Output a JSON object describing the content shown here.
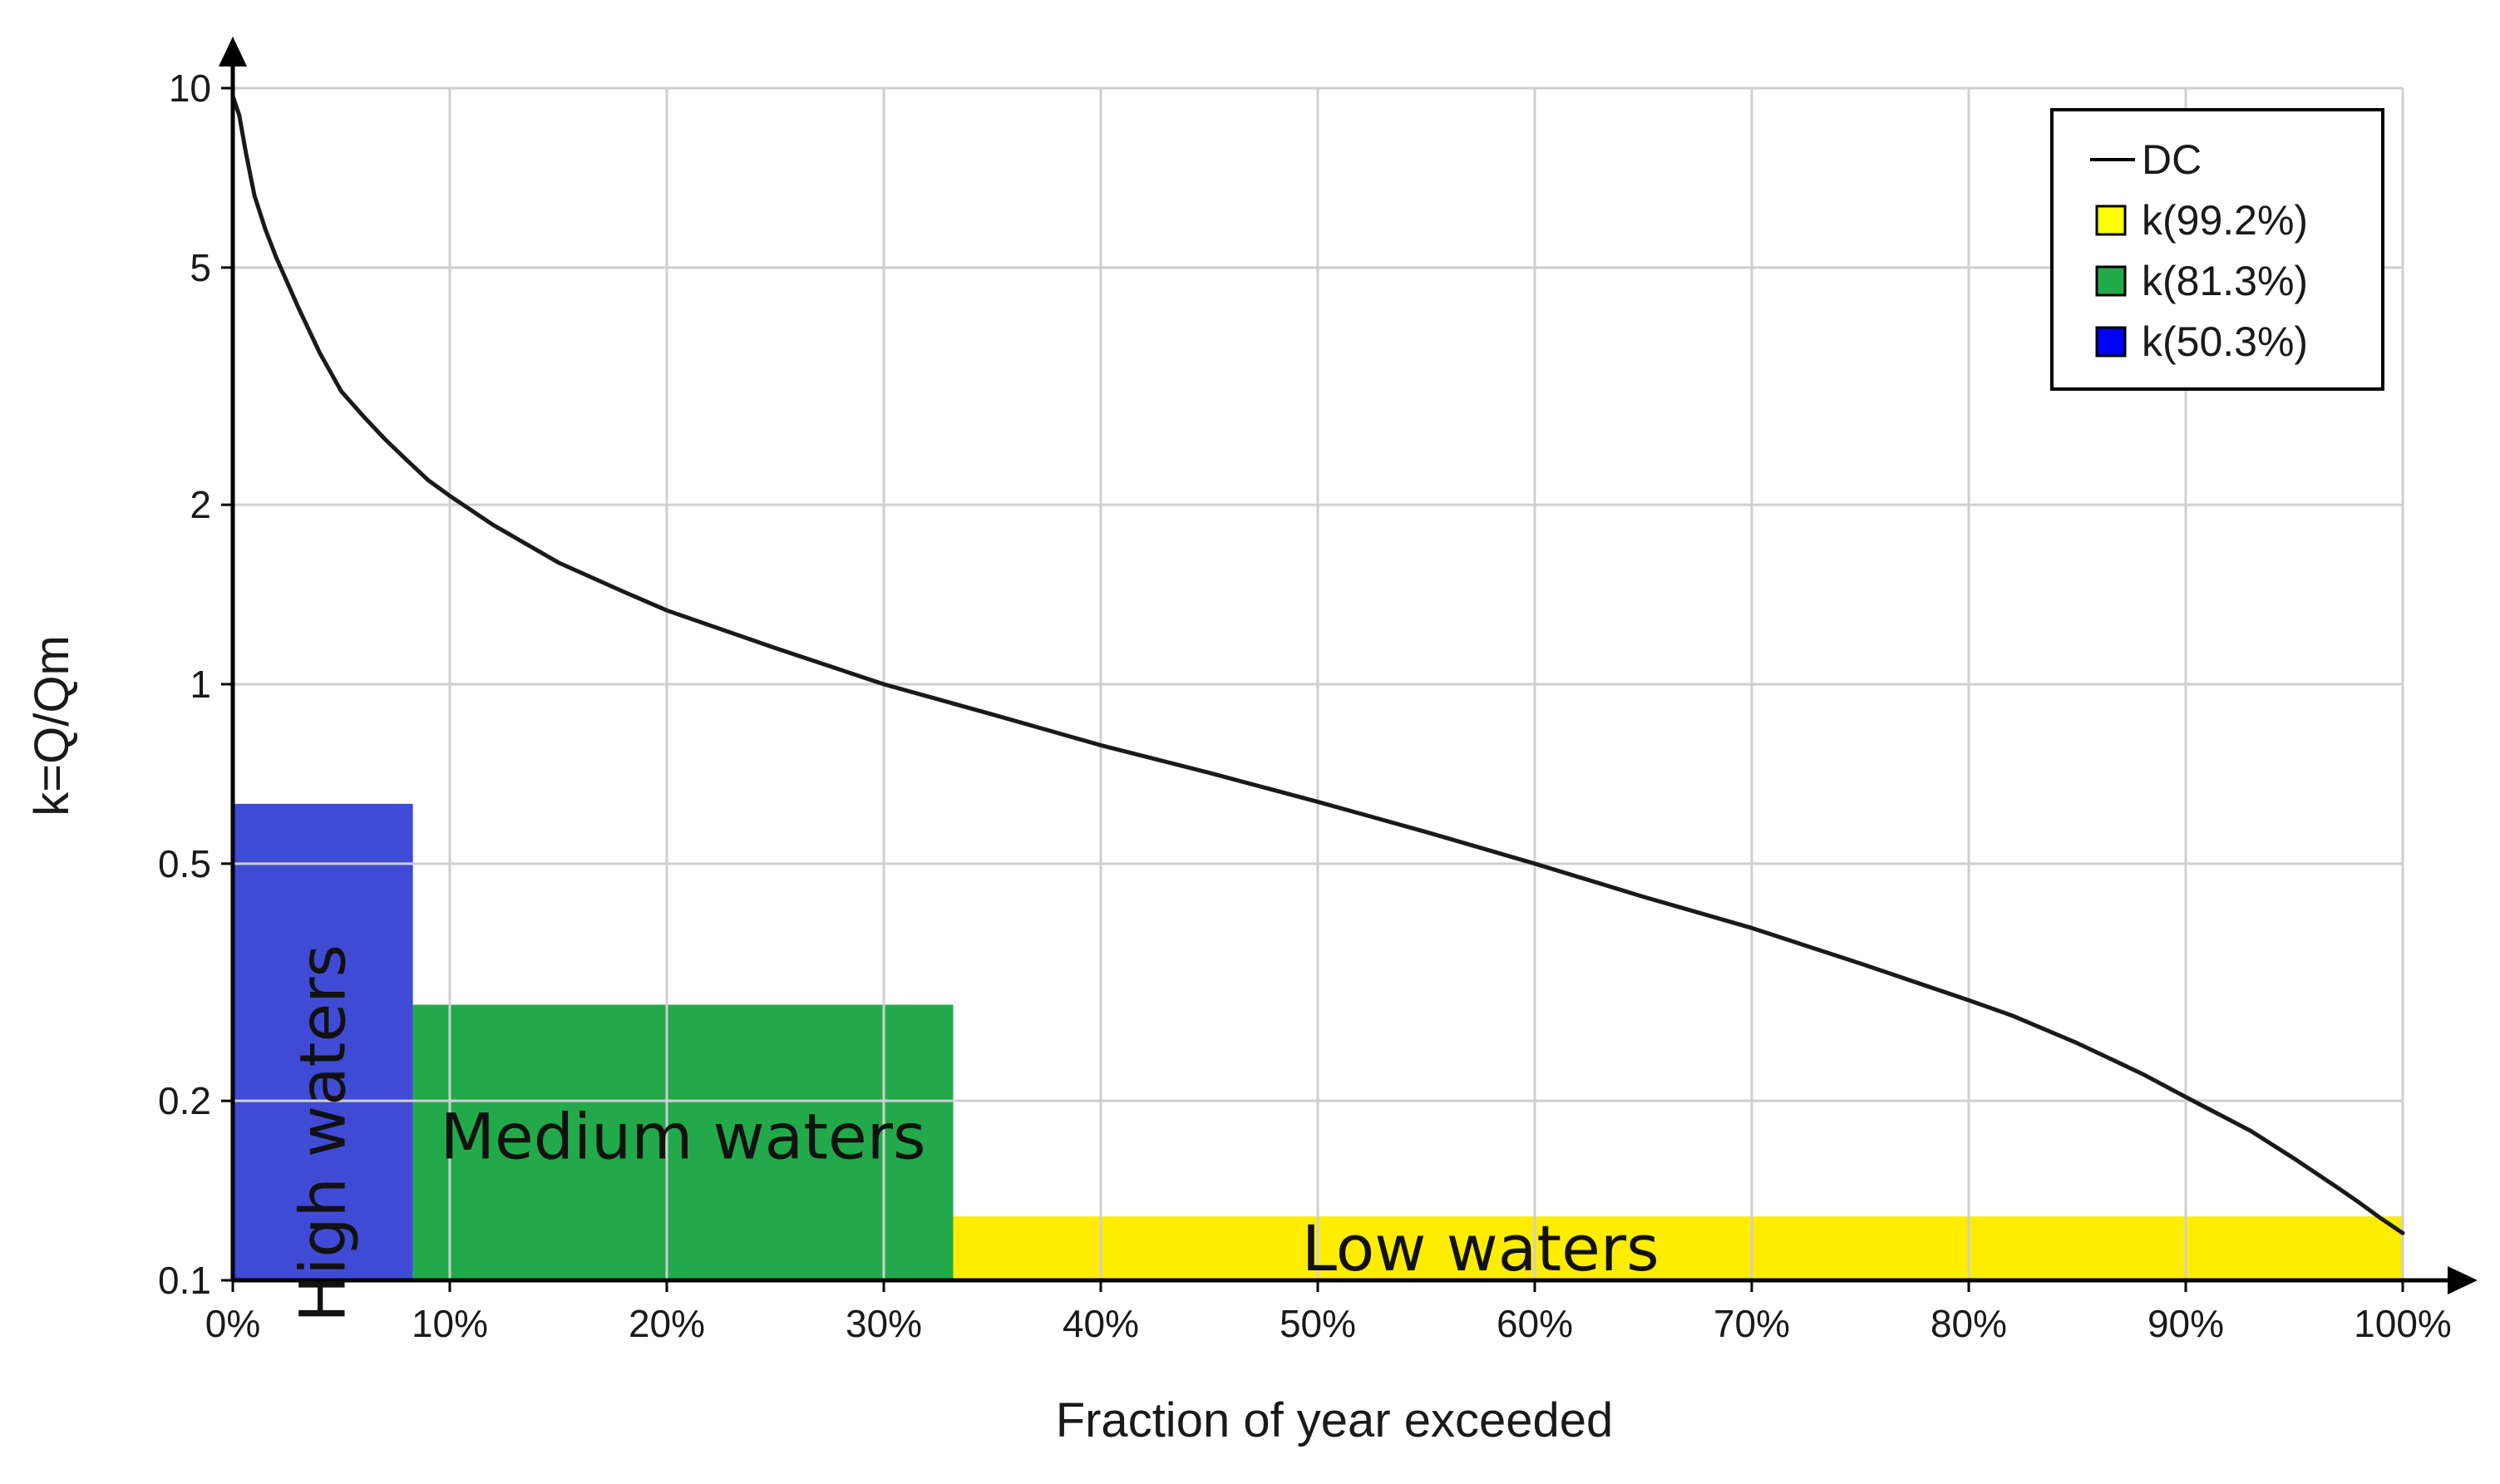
{
  "chart_data": {
    "type": "line",
    "title": "",
    "xlabel": "Fraction of year exceeded",
    "ylabel": "k=Q/Qm",
    "x_scale": "linear",
    "y_scale": "log",
    "xlim": [
      0,
      100
    ],
    "ylim": [
      0.1,
      10
    ],
    "x_ticks": [
      0,
      10,
      20,
      30,
      40,
      50,
      60,
      70,
      80,
      90,
      100
    ],
    "x_tick_labels": [
      "0%",
      "10%",
      "20%",
      "30%",
      "40%",
      "50%",
      "60%",
      "70%",
      "80%",
      "90%",
      "100%"
    ],
    "y_ticks": [
      0.1,
      0.2,
      0.5,
      1,
      2,
      5,
      10
    ],
    "y_tick_labels": [
      "0.1",
      "0.2",
      "0.5",
      "1",
      "2",
      "5",
      "10"
    ],
    "grid": true,
    "legend_position": "top-right",
    "series": [
      {
        "name": "DC",
        "color": "#1a1a1a",
        "x": [
          0,
          0.3,
          0.6,
          1,
          1.5,
          2,
          3,
          4,
          5,
          6,
          7,
          8,
          9,
          10,
          12,
          15,
          18,
          20,
          25,
          30,
          35,
          40,
          45,
          50,
          55,
          60,
          65,
          70,
          75,
          80,
          82,
          85,
          88,
          90,
          93,
          95,
          97,
          98,
          99,
          100
        ],
        "y": [
          9.7,
          9.0,
          7.8,
          6.6,
          5.8,
          5.2,
          4.3,
          3.6,
          3.1,
          2.82,
          2.58,
          2.38,
          2.2,
          2.07,
          1.85,
          1.6,
          1.43,
          1.33,
          1.15,
          1.0,
          0.89,
          0.79,
          0.71,
          0.635,
          0.565,
          0.5,
          0.44,
          0.39,
          0.34,
          0.295,
          0.278,
          0.25,
          0.222,
          0.203,
          0.178,
          0.16,
          0.143,
          0.135,
          0.127,
          0.12
        ]
      }
    ],
    "regions": [
      {
        "legend": "k(50.3%)",
        "label": "High waters",
        "x_start": 0,
        "x_end": 8.3,
        "y_top": 0.63,
        "color": "#3f4bd4"
      },
      {
        "legend": "k(81.3%)",
        "label": "Medium waters",
        "x_start": 8.3,
        "x_end": 33.2,
        "y_top": 0.29,
        "color": "#22aa4a"
      },
      {
        "legend": "k(99.2%)",
        "label": "Low waters",
        "x_start": 33.2,
        "x_end": 100,
        "y_top": 0.128,
        "color": "#ffed00"
      }
    ],
    "legend": [
      "DC",
      "k(99.2%)",
      "k(81.3%)",
      "k(50.3%)"
    ],
    "legend_colors": [
      "#000000",
      "#ffff00",
      "#22aa4a",
      "#0000ff"
    ]
  }
}
